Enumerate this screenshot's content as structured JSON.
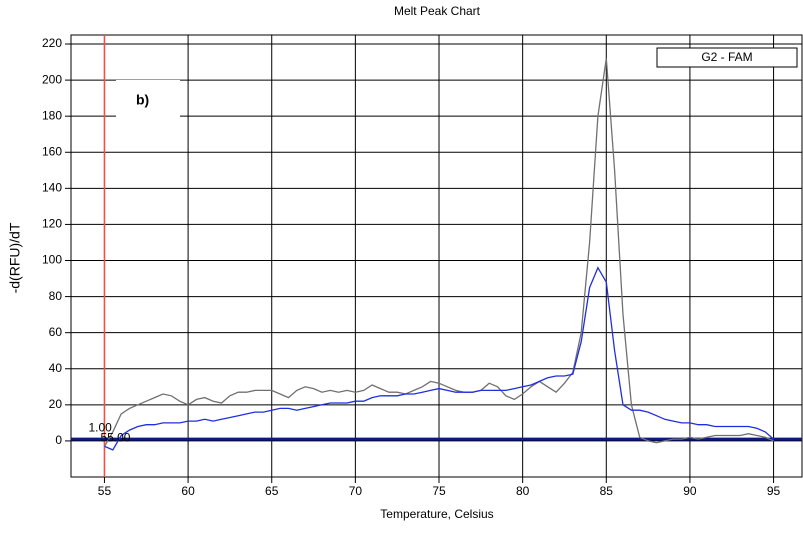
{
  "chart_data": {
    "type": "line",
    "title": "Melt Peak Chart",
    "x_label": "Temperature, Celsius",
    "y_label": "-d(RFU)/dT",
    "legend_label": "G2 - FAM",
    "annotation": "b)",
    "threshold": {
      "value": 1,
      "label": "1.00"
    },
    "marker": {
      "value": 55,
      "label": "55.00"
    },
    "x": [
      55,
      55.5,
      56,
      56.5,
      57,
      57.5,
      58,
      58.5,
      59,
      59.5,
      60,
      60.5,
      61,
      61.5,
      62,
      62.5,
      63,
      63.5,
      64,
      64.5,
      65,
      65.5,
      66,
      66.5,
      67,
      67.5,
      68,
      68.5,
      69,
      69.5,
      70,
      70.5,
      71,
      71.5,
      72,
      72.5,
      73,
      73.5,
      74,
      74.5,
      75,
      75.5,
      76,
      76.5,
      77,
      77.5,
      78,
      78.5,
      79,
      79.5,
      80,
      80.5,
      81,
      81.5,
      82,
      82.5,
      83,
      83.5,
      84,
      84.5,
      85,
      85.5,
      86,
      86.5,
      87,
      87.5,
      88,
      88.5,
      89,
      89.5,
      90,
      90.5,
      91,
      91.5,
      92,
      92.5,
      93,
      93.5,
      94,
      94.5,
      95
    ],
    "series": [
      {
        "color": "#707070",
        "values": [
          -3,
          5,
          15,
          18,
          20,
          22,
          24,
          26,
          25,
          22,
          20,
          23,
          24,
          22,
          21,
          25,
          27,
          27,
          28,
          28,
          28,
          26,
          24,
          28,
          30,
          29,
          27,
          28,
          27,
          28,
          27,
          28,
          31,
          29,
          27,
          27,
          26,
          28,
          30,
          33,
          32,
          30,
          28,
          27,
          27,
          28,
          32,
          30,
          25,
          23,
          26,
          30,
          33,
          30,
          27,
          32,
          38,
          60,
          110,
          180,
          212,
          150,
          70,
          20,
          2,
          0,
          -1,
          0,
          1,
          1,
          2,
          1,
          2,
          3,
          3,
          3,
          3,
          4,
          3,
          2,
          0
        ]
      },
      {
        "color": "#1f2fe0",
        "values": [
          -3,
          -5,
          3,
          6,
          8,
          9,
          9,
          10,
          10,
          10,
          11,
          11,
          12,
          11,
          12,
          13,
          14,
          15,
          16,
          16,
          17,
          18,
          18,
          17,
          18,
          19,
          20,
          21,
          21,
          21,
          22,
          22,
          24,
          25,
          25,
          25,
          26,
          26,
          27,
          28,
          29,
          28,
          27,
          27,
          27,
          28,
          28,
          28,
          28,
          29,
          30,
          31,
          33,
          35,
          36,
          36,
          37,
          55,
          85,
          96,
          88,
          50,
          20,
          17,
          17,
          16,
          14,
          12,
          11,
          10,
          10,
          9,
          9,
          8,
          8,
          8,
          8,
          8,
          7,
          5,
          1
        ]
      }
    ],
    "xlim": [
      53,
      96.7
    ],
    "ylim": [
      -20,
      225
    ],
    "xticks": [
      55,
      60,
      65,
      70,
      75,
      80,
      85,
      90,
      95
    ],
    "yticks": [
      0,
      20,
      40,
      60,
      80,
      100,
      120,
      140,
      160,
      180,
      200,
      220
    ],
    "grid": true,
    "threshold_color": "#0a1a80",
    "marker_color": "#ff4a3a"
  }
}
